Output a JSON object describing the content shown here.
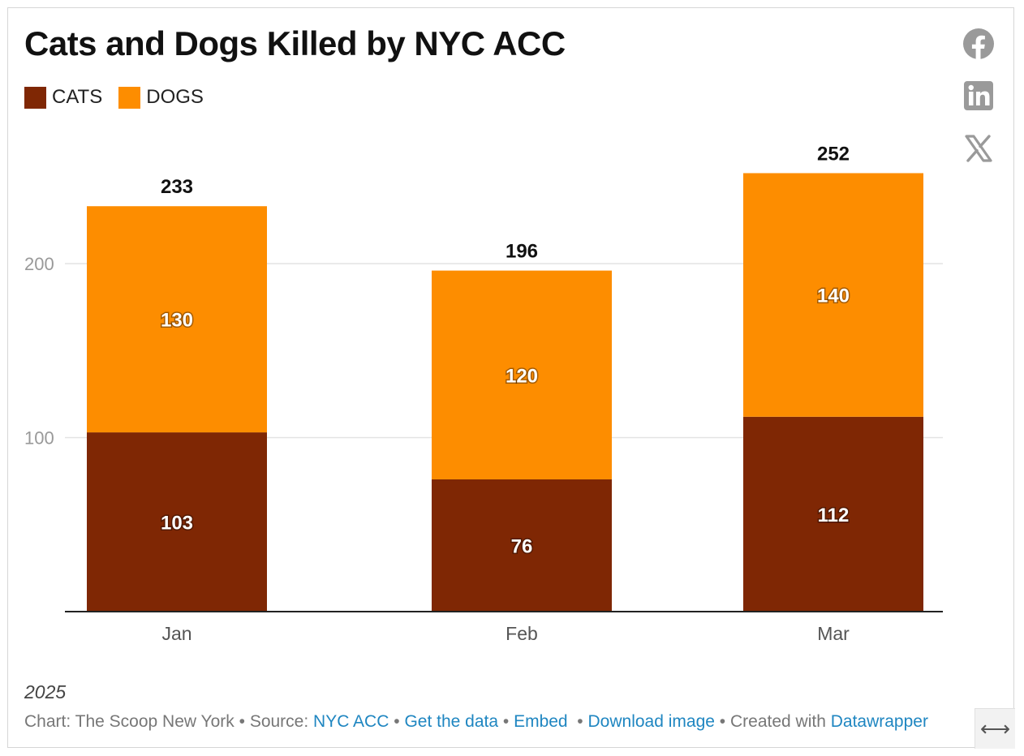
{
  "footer": {
    "year": "2025",
    "credit": "Chart: The Scoop New York",
    "source_prefix": "Source:",
    "source_link": "NYC ACC",
    "get_data": "Get the data",
    "embed": "Embed",
    "download": "Download image",
    "created_prefix": "Created with",
    "created_link": "Datawrapper",
    "sep": "•"
  },
  "share_icons": [
    "facebook-icon",
    "linkedin-icon",
    "x-icon"
  ],
  "resize_glyph": "⟷",
  "chart_data": {
    "type": "bar",
    "stacked": true,
    "title": "Cats and Dogs Killed by NYC ACC",
    "categories": [
      "Jan",
      "Feb",
      "Mar"
    ],
    "series": [
      {
        "name": "CATS",
        "color": "#7f2704",
        "values": [
          103,
          76,
          112
        ]
      },
      {
        "name": "DOGS",
        "color": "#fd8d00",
        "values": [
          130,
          120,
          140
        ]
      }
    ],
    "totals": [
      233,
      196,
      252
    ],
    "yticks": [
      100,
      200
    ],
    "ylim": [
      0,
      252
    ],
    "grid": true,
    "legend": "top-left",
    "xlabel": "",
    "ylabel": ""
  }
}
